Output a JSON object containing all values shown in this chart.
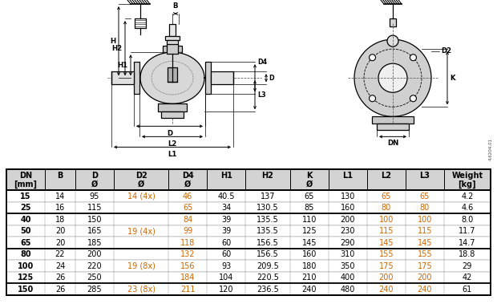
{
  "col_headers_line1": [
    "DN",
    "B",
    "D",
    "D2",
    "D4",
    "H1",
    "H2",
    "K",
    "L1",
    "L2",
    "L3",
    "Weight"
  ],
  "col_headers_line2": [
    "[mm]",
    "",
    "Ø",
    "Ø",
    "Ø",
    "",
    "",
    "Ø",
    "",
    "",
    "",
    "[kg]"
  ],
  "rows": [
    [
      "15",
      "14",
      "95",
      "14 (4x)",
      "46",
      "40.5",
      "137",
      "65",
      "130",
      "65",
      "65",
      "4.2"
    ],
    [
      "25",
      "16",
      "115",
      "",
      "65",
      "34",
      "130.5",
      "85",
      "160",
      "80",
      "80",
      "4.6"
    ],
    [
      "40",
      "18",
      "150",
      "",
      "84",
      "39",
      "135.5",
      "110",
      "200",
      "100",
      "100",
      "8.0"
    ],
    [
      "50",
      "20",
      "165",
      "19 (4x)",
      "99",
      "39",
      "135.5",
      "125",
      "230",
      "115",
      "115",
      "11.7"
    ],
    [
      "65",
      "20",
      "185",
      "",
      "118",
      "60",
      "156.5",
      "145",
      "290",
      "145",
      "145",
      "14.7"
    ],
    [
      "80",
      "22",
      "200",
      "",
      "132",
      "60",
      "156.5",
      "160",
      "310",
      "155",
      "155",
      "18.8"
    ],
    [
      "100",
      "24",
      "220",
      "19 (8x)",
      "156",
      "93",
      "209.5",
      "180",
      "350",
      "175",
      "175",
      "29"
    ],
    [
      "125",
      "26",
      "250",
      "",
      "184",
      "104",
      "220.5",
      "210",
      "400",
      "200",
      "200",
      "42"
    ],
    [
      "150",
      "26",
      "285",
      "23 (8x)",
      "211",
      "120",
      "236.5",
      "240",
      "480",
      "240",
      "240",
      "61"
    ]
  ],
  "header_bg": "#d3d3d3",
  "bg_color": "#ffffff",
  "lc": "#000000",
  "diag_split": 0.535,
  "col_widths_rel": [
    0.95,
    0.75,
    0.95,
    1.35,
    0.95,
    0.95,
    1.1,
    0.95,
    0.95,
    0.95,
    0.95,
    1.15
  ],
  "group_thick_before": [
    0,
    2,
    5,
    8
  ],
  "l3_highlight": [
    3,
    4,
    9,
    10
  ]
}
